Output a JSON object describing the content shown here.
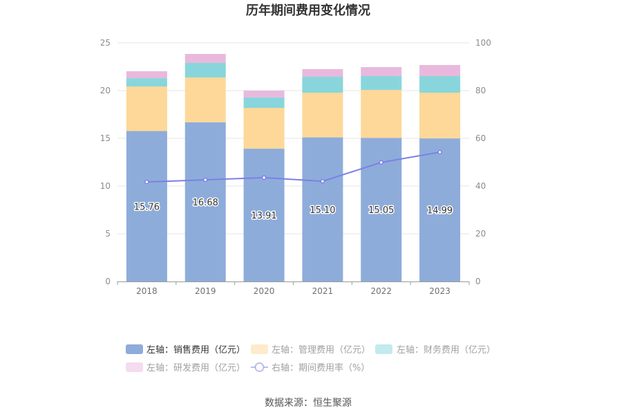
{
  "chart_data": {
    "type": "bar",
    "title": "历年期间费用变化情况",
    "stacked": true,
    "grid": true,
    "legend_position": "bottom",
    "categories": [
      "2018",
      "2019",
      "2020",
      "2021",
      "2022",
      "2023"
    ],
    "y_left": {
      "range": [
        0,
        25
      ],
      "ticks": [
        0,
        5,
        10,
        15,
        20,
        25
      ]
    },
    "y_right": {
      "range": [
        0,
        100
      ],
      "ticks": [
        0,
        20,
        40,
        60,
        80,
        100
      ]
    },
    "series": [
      {
        "name": "左轴：销售费用（亿元）",
        "type": "bar",
        "axis": "left",
        "color": "#8eacda",
        "values": [
          15.76,
          16.68,
          13.91,
          15.1,
          15.05,
          14.99
        ],
        "data_labels": [
          "15.76",
          "16.68",
          "13.91",
          "15.10",
          "15.05",
          "14.99"
        ]
      },
      {
        "name": "左轴：管理费用（亿元）",
        "type": "bar",
        "axis": "left",
        "color": "#fdd898",
        "values": [
          4.67,
          4.7,
          4.28,
          4.68,
          5.02,
          4.79
        ]
      },
      {
        "name": "左轴：财务费用（亿元）",
        "type": "bar",
        "axis": "left",
        "color": "#88d6dc",
        "values": [
          0.87,
          1.52,
          1.09,
          1.67,
          1.45,
          1.74
        ]
      },
      {
        "name": "左轴：研发费用（亿元）",
        "type": "bar",
        "axis": "left",
        "color": "#e9b9dd",
        "values": [
          0.73,
          0.94,
          0.72,
          0.8,
          0.94,
          1.16
        ]
      },
      {
        "name": "右轴：期间费用率（%）",
        "type": "line",
        "axis": "right",
        "color": "#7b80e6",
        "values": [
          41.7,
          42.6,
          43.5,
          42.0,
          49.9,
          54.2
        ]
      }
    ]
  },
  "source": "数据来源：恒生聚源"
}
